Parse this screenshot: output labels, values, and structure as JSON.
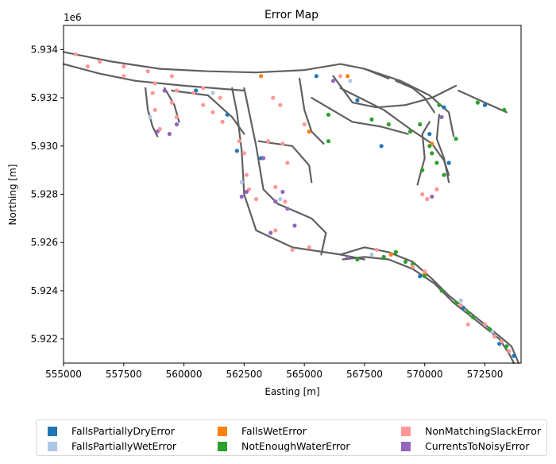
{
  "chart_data": {
    "type": "scatter",
    "title": "Error Map",
    "xlabel": "Easting [m]",
    "ylabel": "Northing [m]",
    "y_offset_label": "1e6",
    "xlim": [
      555000,
      574000
    ],
    "ylim": [
      5921000,
      5935000
    ],
    "x_ticks": [
      555000,
      557500,
      560000,
      562500,
      565000,
      567500,
      570000,
      572500
    ],
    "x_tick_labels": [
      "555000",
      "557500",
      "560000",
      "562500",
      "565000",
      "567500",
      "570000",
      "572500"
    ],
    "y_ticks": [
      5922000,
      5924000,
      5926000,
      5928000,
      5930000,
      5932000,
      5934000
    ],
    "y_tick_labels": [
      "5.922",
      "5.924",
      "5.926",
      "5.928",
      "5.930",
      "5.932",
      "5.934"
    ],
    "grid": false,
    "legend_position": "bottom-center",
    "background_network_color": "#606060",
    "waterways": [
      [
        [
          555000,
          5933900
        ],
        [
          557000,
          5933500
        ],
        [
          559000,
          5933200
        ],
        [
          561000,
          5933100
        ],
        [
          563000,
          5933050
        ],
        [
          565000,
          5933150
        ],
        [
          566500,
          5933400
        ],
        [
          567500,
          5933200
        ],
        [
          568500,
          5932800
        ]
      ],
      [
        [
          555000,
          5933400
        ],
        [
          556500,
          5933000
        ],
        [
          558000,
          5932700
        ],
        [
          560000,
          5932500
        ],
        [
          562500,
          5932300
        ]
      ],
      [
        [
          558400,
          5932400
        ],
        [
          558500,
          5931500
        ],
        [
          558700,
          5930800
        ],
        [
          558900,
          5930400
        ]
      ],
      [
        [
          559200,
          5932400
        ],
        [
          559600,
          5931700
        ],
        [
          559800,
          5931000
        ]
      ],
      [
        [
          559500,
          5932300
        ],
        [
          561000,
          5932100
        ],
        [
          562000,
          5931200
        ],
        [
          562500,
          5930500
        ]
      ],
      [
        [
          562000,
          5932400
        ],
        [
          562200,
          5931400
        ],
        [
          562400,
          5929800
        ],
        [
          562500,
          5928000
        ]
      ],
      [
        [
          562500,
          5932400
        ],
        [
          563000,
          5930000
        ],
        [
          563300,
          5928200
        ],
        [
          563900,
          5927600
        ]
      ],
      [
        [
          563100,
          5930200
        ],
        [
          564500,
          5930000
        ],
        [
          565200,
          5929200
        ],
        [
          565300,
          5928500
        ]
      ],
      [
        [
          563900,
          5927600
        ],
        [
          565300,
          5927000
        ],
        [
          565900,
          5926400
        ],
        [
          565700,
          5925500
        ]
      ],
      [
        [
          562500,
          5928000
        ],
        [
          563000,
          5926500
        ],
        [
          564500,
          5925800
        ],
        [
          566500,
          5925500
        ],
        [
          567500,
          5925300
        ]
      ],
      [
        [
          564800,
          5932800
        ],
        [
          565000,
          5931500
        ],
        [
          565300,
          5930600
        ],
        [
          565800,
          5930100
        ]
      ],
      [
        [
          566200,
          5932900
        ],
        [
          567000,
          5931800
        ],
        [
          568000,
          5931600
        ],
        [
          569200,
          5931700
        ],
        [
          570300,
          5932000
        ],
        [
          571300,
          5932500
        ]
      ],
      [
        [
          566500,
          5932400
        ],
        [
          568300,
          5931500
        ],
        [
          569400,
          5930700
        ],
        [
          570300,
          5930100
        ],
        [
          570800,
          5929400
        ],
        [
          571000,
          5928800
        ]
      ],
      [
        [
          567500,
          5933200
        ],
        [
          569000,
          5932700
        ],
        [
          570200,
          5932100
        ],
        [
          571000,
          5931400
        ],
        [
          571200,
          5930400
        ]
      ],
      [
        [
          565300,
          5932000
        ],
        [
          567000,
          5931000
        ],
        [
          568200,
          5930800
        ],
        [
          569300,
          5930500
        ]
      ],
      [
        [
          571400,
          5932300
        ],
        [
          572500,
          5931800
        ],
        [
          573400,
          5931400
        ]
      ],
      [
        [
          569700,
          5928400
        ],
        [
          570000,
          5929500
        ],
        [
          569900,
          5930500
        ],
        [
          570200,
          5931000
        ]
      ],
      [
        [
          570600,
          5931300
        ],
        [
          570500,
          5930300
        ],
        [
          570800,
          5929500
        ],
        [
          571000,
          5928500
        ]
      ],
      [
        [
          566500,
          5925500
        ],
        [
          567500,
          5925800
        ],
        [
          568500,
          5925600
        ],
        [
          569500,
          5925200
        ],
        [
          570300,
          5924500
        ],
        [
          571000,
          5923800
        ],
        [
          572000,
          5923000
        ],
        [
          573000,
          5922200
        ],
        [
          573600,
          5921700
        ],
        [
          573900,
          5921000
        ]
      ],
      [
        [
          566600,
          5925300
        ],
        [
          567500,
          5925400
        ],
        [
          568500,
          5925300
        ],
        [
          569500,
          5924900
        ],
        [
          570400,
          5924300
        ],
        [
          571200,
          5923500
        ],
        [
          572100,
          5922800
        ],
        [
          573100,
          5922000
        ],
        [
          573500,
          5921400
        ],
        [
          573700,
          5921000
        ]
      ],
      [
        [
          568800,
          5932700
        ],
        [
          569500,
          5932400
        ],
        [
          570000,
          5932000
        ],
        [
          570400,
          5931400
        ]
      ]
    ],
    "series": [
      {
        "name": "FallsPartiallyDryError",
        "color": "#1f77b4",
        "points": [
          [
            560500,
            5932300
          ],
          [
            561800,
            5931300
          ],
          [
            562200,
            5929800
          ],
          [
            563200,
            5929500
          ],
          [
            568200,
            5930000
          ],
          [
            570200,
            5930500
          ],
          [
            571000,
            5929300
          ],
          [
            570800,
            5931600
          ],
          [
            572500,
            5931700
          ],
          [
            569800,
            5924600
          ],
          [
            571600,
            5923300
          ],
          [
            573100,
            5921800
          ],
          [
            573700,
            5921300
          ],
          [
            565500,
            5932900
          ],
          [
            567200,
            5931900
          ]
        ]
      },
      {
        "name": "FallsPartiallyWetError",
        "color": "#aec7e8",
        "points": [
          [
            561200,
            5932200
          ],
          [
            562400,
            5928500
          ],
          [
            564000,
            5927800
          ],
          [
            567800,
            5925500
          ],
          [
            571500,
            5923600
          ],
          [
            572800,
            5922300
          ],
          [
            558600,
            5931200
          ],
          [
            566900,
            5932700
          ]
        ]
      },
      {
        "name": "FallsWetError",
        "color": "#ff7f0e",
        "points": [
          [
            563200,
            5932900
          ],
          [
            565200,
            5930600
          ],
          [
            570300,
            5930100
          ],
          [
            568600,
            5925500
          ],
          [
            566800,
            5932900
          ],
          [
            570000,
            5924700
          ]
        ]
      },
      {
        "name": "NotEnoughWaterError",
        "color": "#2ca02c",
        "points": [
          [
            569800,
            5930900
          ],
          [
            570200,
            5930000
          ],
          [
            570500,
            5929300
          ],
          [
            570800,
            5928800
          ],
          [
            569900,
            5929000
          ],
          [
            568300,
            5925400
          ],
          [
            568800,
            5925600
          ],
          [
            569500,
            5925100
          ],
          [
            570000,
            5924600
          ],
          [
            570700,
            5924000
          ],
          [
            571300,
            5923500
          ],
          [
            572000,
            5922900
          ],
          [
            572700,
            5922400
          ],
          [
            573400,
            5921700
          ],
          [
            566000,
            5931300
          ],
          [
            567800,
            5931100
          ],
          [
            568500,
            5930900
          ],
          [
            569400,
            5930600
          ],
          [
            570600,
            5931700
          ],
          [
            571300,
            5930300
          ],
          [
            567200,
            5925300
          ],
          [
            566000,
            5930200
          ],
          [
            571800,
            5923100
          ],
          [
            569200,
            5925200
          ],
          [
            570300,
            5929700
          ],
          [
            572200,
            5931800
          ],
          [
            573300,
            5931500
          ]
        ]
      },
      {
        "name": "NonMatchingSlackError",
        "color": "#ff9896",
        "points": [
          [
            555500,
            5933800
          ],
          [
            556500,
            5933500
          ],
          [
            557500,
            5933300
          ],
          [
            558500,
            5933100
          ],
          [
            559500,
            5932900
          ],
          [
            556000,
            5933300
          ],
          [
            557500,
            5932900
          ],
          [
            558800,
            5932600
          ],
          [
            559700,
            5932300
          ],
          [
            560400,
            5932200
          ],
          [
            560800,
            5931700
          ],
          [
            561200,
            5931400
          ],
          [
            561600,
            5931000
          ],
          [
            562300,
            5930200
          ],
          [
            562500,
            5929700
          ],
          [
            562600,
            5928800
          ],
          [
            562700,
            5928200
          ],
          [
            563000,
            5927800
          ],
          [
            563500,
            5930200
          ],
          [
            564100,
            5930100
          ],
          [
            563800,
            5928300
          ],
          [
            564200,
            5927700
          ],
          [
            558700,
            5932200
          ],
          [
            558800,
            5931500
          ],
          [
            559000,
            5930700
          ],
          [
            559500,
            5931800
          ],
          [
            559700,
            5931200
          ],
          [
            564000,
            5931700
          ],
          [
            563700,
            5932000
          ],
          [
            565000,
            5930900
          ],
          [
            566500,
            5932900
          ],
          [
            563800,
            5926500
          ],
          [
            564500,
            5925700
          ],
          [
            565200,
            5925800
          ],
          [
            568000,
            5925700
          ],
          [
            569500,
            5925000
          ],
          [
            570000,
            5924800
          ],
          [
            571500,
            5923400
          ],
          [
            572500,
            5922600
          ],
          [
            573200,
            5921900
          ],
          [
            573500,
            5921500
          ],
          [
            571800,
            5922600
          ],
          [
            572900,
            5922100
          ],
          [
            570500,
            5928200
          ],
          [
            569900,
            5928000
          ],
          [
            570100,
            5927800
          ],
          [
            564300,
            5929300
          ],
          [
            560800,
            5932400
          ],
          [
            561500,
            5932000
          ]
        ]
      },
      {
        "name": "CurrentsToNoisyError",
        "color": "#9467bd",
        "points": [
          [
            558900,
            5930600
          ],
          [
            559400,
            5930500
          ],
          [
            559700,
            5930900
          ],
          [
            562600,
            5928100
          ],
          [
            562400,
            5927900
          ],
          [
            563800,
            5927700
          ],
          [
            564100,
            5928100
          ],
          [
            564300,
            5927400
          ],
          [
            564600,
            5926700
          ],
          [
            563600,
            5926400
          ],
          [
            566200,
            5932700
          ],
          [
            570300,
            5927900
          ],
          [
            570700,
            5931200
          ],
          [
            566800,
            5925400
          ],
          [
            559200,
            5932300
          ],
          [
            563300,
            5929500
          ]
        ]
      }
    ]
  }
}
